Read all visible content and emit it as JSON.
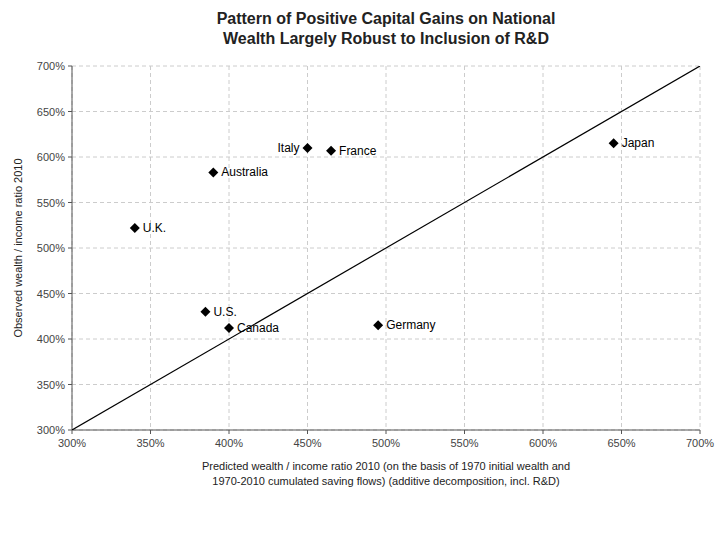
{
  "chart_data": {
    "type": "scatter",
    "title": "Pattern of Positive Capital Gains on National\nWealth Largely Robust to Inclusion of R&D",
    "xlabel": "Predicted wealth / income ratio 2010 (on the basis of 1970 initial wealth and\n1970-2010 cumulated saving flows) (additive decomposition, incl. R&D)",
    "ylabel": "Observed wealth / income ratio 2010",
    "series": [
      {
        "type": "scatter",
        "marker": "diamond",
        "color": "#000000",
        "point_labels": [
          "U.K.",
          "U.S.",
          "Canada",
          "Australia",
          "Italy",
          "France",
          "Germany",
          "Japan"
        ],
        "x": [
          3.4,
          3.85,
          4.0,
          3.9,
          4.5,
          4.65,
          4.95,
          6.45
        ],
        "values": [
          5.22,
          4.3,
          4.12,
          5.83,
          6.1,
          6.07,
          4.15,
          6.15
        ]
      },
      {
        "type": "line",
        "line_style": "solid",
        "color": "#000000",
        "x": [
          3.0,
          7.0
        ],
        "values": [
          3.0,
          7.0
        ]
      }
    ],
    "xlim": [
      3.0,
      7.0
    ],
    "ylim": [
      3.0,
      7.0
    ],
    "xticks": [
      {
        "value": 3.0,
        "label": "300%"
      },
      {
        "value": 3.5,
        "label": "350%"
      },
      {
        "value": 4.0,
        "label": "400%"
      },
      {
        "value": 4.5,
        "label": "450%"
      },
      {
        "value": 5.0,
        "label": "500%"
      },
      {
        "value": 5.5,
        "label": "550%"
      },
      {
        "value": 6.0,
        "label": "600%"
      },
      {
        "value": 6.5,
        "label": "650%"
      },
      {
        "value": 7.0,
        "label": "700%"
      }
    ],
    "yticks": [
      {
        "value": 3.0,
        "label": "300%"
      },
      {
        "value": 3.5,
        "label": "350%"
      },
      {
        "value": 4.0,
        "label": "400%"
      },
      {
        "value": 4.5,
        "label": "450%"
      },
      {
        "value": 5.0,
        "label": "500%"
      },
      {
        "value": 5.5,
        "label": "550%"
      },
      {
        "value": 6.0,
        "label": "600%"
      },
      {
        "value": 6.5,
        "label": "650%"
      },
      {
        "value": 7.0,
        "label": "700%"
      }
    ],
    "grid": true
  }
}
